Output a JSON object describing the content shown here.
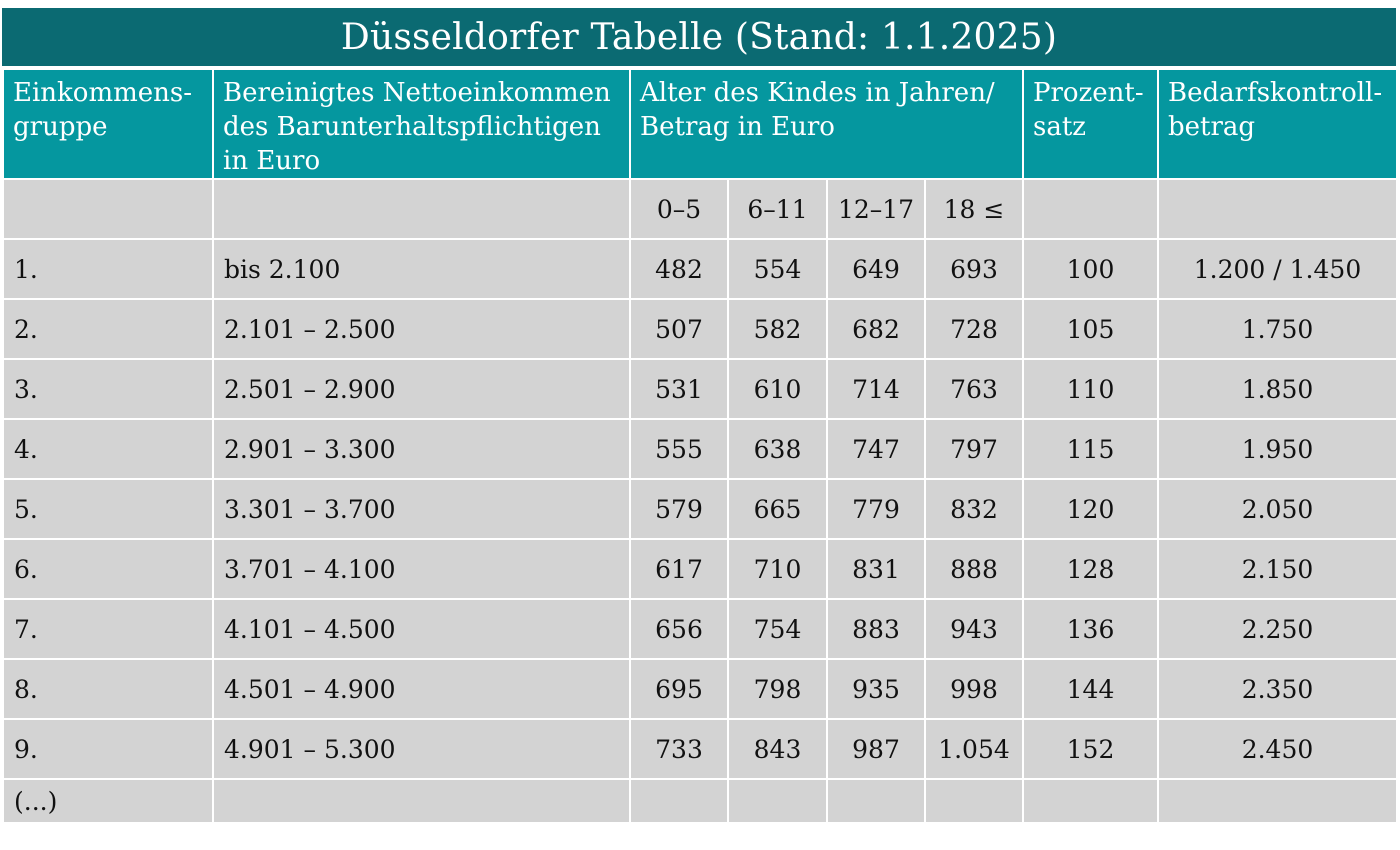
{
  "title": "Düsseldorfer Tabelle (Stand: 1.1.2025)",
  "headers": {
    "group": "Einkommens-gruppe",
    "income": "Bereinigtes Nettoeinkommen des Barunterhaltspflichtigen in Euro",
    "age": "Alter des Kindes in Jahren/ Betrag in Euro",
    "percent": "Prozent-satz",
    "control": "Bedarfskontroll-betrag"
  },
  "age_groups": [
    "0–5",
    "6–11",
    "12–17",
    "18 ≤"
  ],
  "rows": [
    {
      "group": "1.",
      "income": "bis 2.100",
      "a": "482",
      "b": "554",
      "c": "649",
      "d": "693",
      "percent": "100",
      "control": "1.200 / 1.450"
    },
    {
      "group": "2.",
      "income": "2.101 – 2.500",
      "a": "507",
      "b": "582",
      "c": "682",
      "d": "728",
      "percent": "105",
      "control": "1.750"
    },
    {
      "group": "3.",
      "income": "2.501 – 2.900",
      "a": "531",
      "b": "610",
      "c": "714",
      "d": "763",
      "percent": "110",
      "control": "1.850"
    },
    {
      "group": "4.",
      "income": "2.901 – 3.300",
      "a": "555",
      "b": "638",
      "c": "747",
      "d": "797",
      "percent": "115",
      "control": "1.950"
    },
    {
      "group": "5.",
      "income": "3.301 – 3.700",
      "a": "579",
      "b": "665",
      "c": "779",
      "d": "832",
      "percent": "120",
      "control": "2.050"
    },
    {
      "group": "6.",
      "income": "3.701 – 4.100",
      "a": "617",
      "b": "710",
      "c": "831",
      "d": "888",
      "percent": "128",
      "control": "2.150"
    },
    {
      "group": "7.",
      "income": "4.101 – 4.500",
      "a": "656",
      "b": "754",
      "c": "883",
      "d": "943",
      "percent": "136",
      "control": "2.250"
    },
    {
      "group": "8.",
      "income": "4.501 – 4.900",
      "a": "695",
      "b": "798",
      "c": "935",
      "d": "998",
      "percent": "144",
      "control": "2.350"
    },
    {
      "group": "9.",
      "income": "4.901 – 5.300",
      "a": "733",
      "b": "843",
      "c": "987",
      "d": "1.054",
      "percent": "152",
      "control": "2.450"
    }
  ],
  "ellipsis_row": "(...)",
  "colors": {
    "title_bg": "#0b6a72",
    "header_bg": "#05979f",
    "cell_bg": "#d3d3d3"
  }
}
